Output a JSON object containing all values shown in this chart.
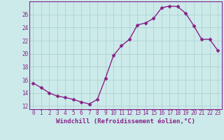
{
  "x": [
    0,
    1,
    2,
    3,
    4,
    5,
    6,
    7,
    8,
    9,
    10,
    11,
    12,
    13,
    14,
    15,
    16,
    17,
    18,
    19,
    20,
    21,
    22,
    23
  ],
  "y": [
    15.5,
    14.8,
    14.0,
    13.5,
    13.3,
    13.0,
    12.6,
    12.3,
    13.0,
    16.2,
    19.7,
    21.2,
    22.2,
    24.4,
    24.7,
    25.4,
    27.0,
    27.3,
    27.2,
    26.2,
    24.3,
    22.2,
    22.2,
    20.5
  ],
  "line_color": "#882288",
  "marker": "D",
  "marker_size": 2.5,
  "linewidth": 1.0,
  "bg_color": "#cceaea",
  "grid_color": "#aacccc",
  "xlabel": "Windchill (Refroidissement éolien,°C)",
  "xlabel_color": "#882288",
  "xlabel_fontsize": 6.5,
  "ylabel_ticks": [
    12,
    14,
    16,
    18,
    20,
    22,
    24,
    26
  ],
  "ylim": [
    11.5,
    28.0
  ],
  "xlim": [
    -0.5,
    23.5
  ],
  "tick_fontsize": 5.5,
  "tick_color": "#882288",
  "spine_color": "#882288"
}
